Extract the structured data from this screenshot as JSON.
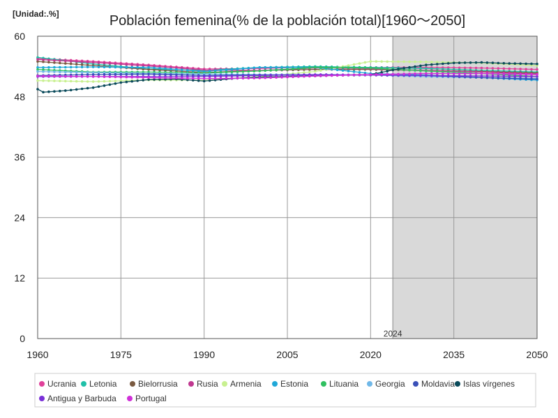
{
  "chart_data": {
    "type": "line",
    "title": "Población femenina(% de la población total)[1960〜2050]",
    "unit_label": "[Unidad:.%]",
    "xlabel": "",
    "ylabel": "",
    "xlim": [
      1960,
      2050
    ],
    "ylim": [
      0,
      60
    ],
    "x_ticks": [
      1960,
      1975,
      1990,
      2005,
      2020,
      2035,
      2050
    ],
    "y_ticks": [
      0,
      12,
      24,
      36,
      48,
      60
    ],
    "forecast_start": 2024,
    "forecast_label": "2024",
    "grid": true,
    "legend_position": "bottom",
    "series": [
      {
        "name": "Ucrania",
        "color": "#e0409a",
        "points": [
          [
            1960,
            55.6
          ],
          [
            1970,
            55.0
          ],
          [
            1980,
            54.3
          ],
          [
            1990,
            53.5
          ],
          [
            2000,
            53.6
          ],
          [
            2010,
            53.9
          ],
          [
            2020,
            53.8
          ],
          [
            2030,
            53.8
          ],
          [
            2040,
            53.7
          ],
          [
            2050,
            53.4
          ]
        ]
      },
      {
        "name": "Letonia",
        "color": "#20c0a8",
        "points": [
          [
            1960,
            55.8
          ],
          [
            1970,
            54.5
          ],
          [
            1980,
            53.5
          ],
          [
            1990,
            53.2
          ],
          [
            2000,
            53.8
          ],
          [
            2010,
            54.0
          ],
          [
            2020,
            53.8
          ],
          [
            2030,
            53.6
          ],
          [
            2040,
            53.2
          ],
          [
            2050,
            52.9
          ]
        ]
      },
      {
        "name": "Bielorrusia",
        "color": "#7a5a40",
        "points": [
          [
            1960,
            55.0
          ],
          [
            1970,
            54.2
          ],
          [
            1980,
            53.4
          ],
          [
            1990,
            52.8
          ],
          [
            2000,
            53.2
          ],
          [
            2010,
            53.4
          ],
          [
            2020,
            53.4
          ],
          [
            2030,
            53.2
          ],
          [
            2040,
            53.0
          ],
          [
            2050,
            52.7
          ]
        ]
      },
      {
        "name": "Rusia",
        "color": "#c03890",
        "points": [
          [
            1960,
            55.4
          ],
          [
            1970,
            54.8
          ],
          [
            1980,
            54.1
          ],
          [
            1990,
            53.3
          ],
          [
            2000,
            53.2
          ],
          [
            2010,
            53.7
          ],
          [
            2020,
            53.6
          ],
          [
            2030,
            53.2
          ],
          [
            2040,
            52.9
          ],
          [
            2050,
            52.5
          ]
        ]
      },
      {
        "name": "Armenia",
        "color": "#c8f090",
        "points": [
          [
            1960,
            51.2
          ],
          [
            1970,
            51.0
          ],
          [
            1980,
            51.3
          ],
          [
            1990,
            51.3
          ],
          [
            2000,
            52.0
          ],
          [
            2010,
            53.0
          ],
          [
            2020,
            55.0
          ],
          [
            2030,
            54.9
          ],
          [
            2040,
            54.7
          ],
          [
            2050,
            54.2
          ]
        ]
      },
      {
        "name": "Estonia",
        "color": "#20a8d8",
        "points": [
          [
            1960,
            53.8
          ],
          [
            1970,
            53.9
          ],
          [
            1980,
            53.8
          ],
          [
            1990,
            53.0
          ],
          [
            2000,
            53.8
          ],
          [
            2010,
            53.8
          ],
          [
            2020,
            52.6
          ],
          [
            2030,
            52.3
          ],
          [
            2040,
            51.8
          ],
          [
            2050,
            51.3
          ]
        ]
      },
      {
        "name": "Lituania",
        "color": "#30c060",
        "points": [
          [
            1960,
            53.4
          ],
          [
            1970,
            52.9
          ],
          [
            1980,
            52.9
          ],
          [
            1990,
            52.7
          ],
          [
            2000,
            53.1
          ],
          [
            2010,
            53.8
          ],
          [
            2020,
            53.7
          ],
          [
            2030,
            53.1
          ],
          [
            2040,
            52.6
          ],
          [
            2050,
            52.0
          ]
        ]
      },
      {
        "name": "Georgia",
        "color": "#70b8e8",
        "points": [
          [
            1960,
            53.0
          ],
          [
            1970,
            52.8
          ],
          [
            1980,
            52.6
          ],
          [
            1990,
            52.5
          ],
          [
            2000,
            52.4
          ],
          [
            2010,
            52.4
          ],
          [
            2020,
            52.3
          ],
          [
            2030,
            52.0
          ],
          [
            2040,
            51.8
          ],
          [
            2050,
            51.6
          ]
        ]
      },
      {
        "name": "Moldavia",
        "color": "#3a50b8",
        "points": [
          [
            1960,
            52.2
          ],
          [
            1970,
            52.4
          ],
          [
            1980,
            52.5
          ],
          [
            1990,
            52.2
          ],
          [
            2000,
            52.3
          ],
          [
            2010,
            52.2
          ],
          [
            2020,
            52.3
          ],
          [
            2030,
            52.2
          ],
          [
            2040,
            51.8
          ],
          [
            2050,
            51.5
          ]
        ]
      },
      {
        "name": "Islas vírgenes",
        "color": "#0a4a5a",
        "points": [
          [
            1960,
            49.5
          ],
          [
            1961,
            48.9
          ],
          [
            1965,
            49.2
          ],
          [
            1970,
            49.8
          ],
          [
            1975,
            50.8
          ],
          [
            1980,
            51.4
          ],
          [
            1985,
            51.5
          ],
          [
            1990,
            51.1
          ],
          [
            1995,
            51.6
          ],
          [
            2000,
            51.9
          ],
          [
            2005,
            52.0
          ],
          [
            2010,
            52.1
          ],
          [
            2015,
            52.3
          ],
          [
            2020,
            52.4
          ],
          [
            2025,
            53.5
          ],
          [
            2030,
            54.3
          ],
          [
            2035,
            54.7
          ],
          [
            2040,
            54.8
          ],
          [
            2045,
            54.6
          ],
          [
            2050,
            54.5
          ]
        ]
      },
      {
        "name": "Antigua y Barbuda",
        "color": "#7a30d8",
        "points": [
          [
            1960,
            52.0
          ],
          [
            1970,
            52.0
          ],
          [
            1980,
            52.0
          ],
          [
            1990,
            52.0
          ],
          [
            2000,
            52.2
          ],
          [
            2010,
            52.4
          ],
          [
            2020,
            52.3
          ],
          [
            2030,
            52.2
          ],
          [
            2040,
            52.1
          ],
          [
            2050,
            52.0
          ]
        ]
      },
      {
        "name": "Portugal",
        "color": "#d030d8",
        "points": [
          [
            1960,
            52.1
          ],
          [
            1970,
            52.0
          ],
          [
            1980,
            51.8
          ],
          [
            1990,
            51.6
          ],
          [
            2000,
            51.7
          ],
          [
            2010,
            52.1
          ],
          [
            2020,
            52.4
          ],
          [
            2030,
            52.6
          ],
          [
            2040,
            52.6
          ],
          [
            2050,
            52.4
          ]
        ]
      }
    ]
  }
}
